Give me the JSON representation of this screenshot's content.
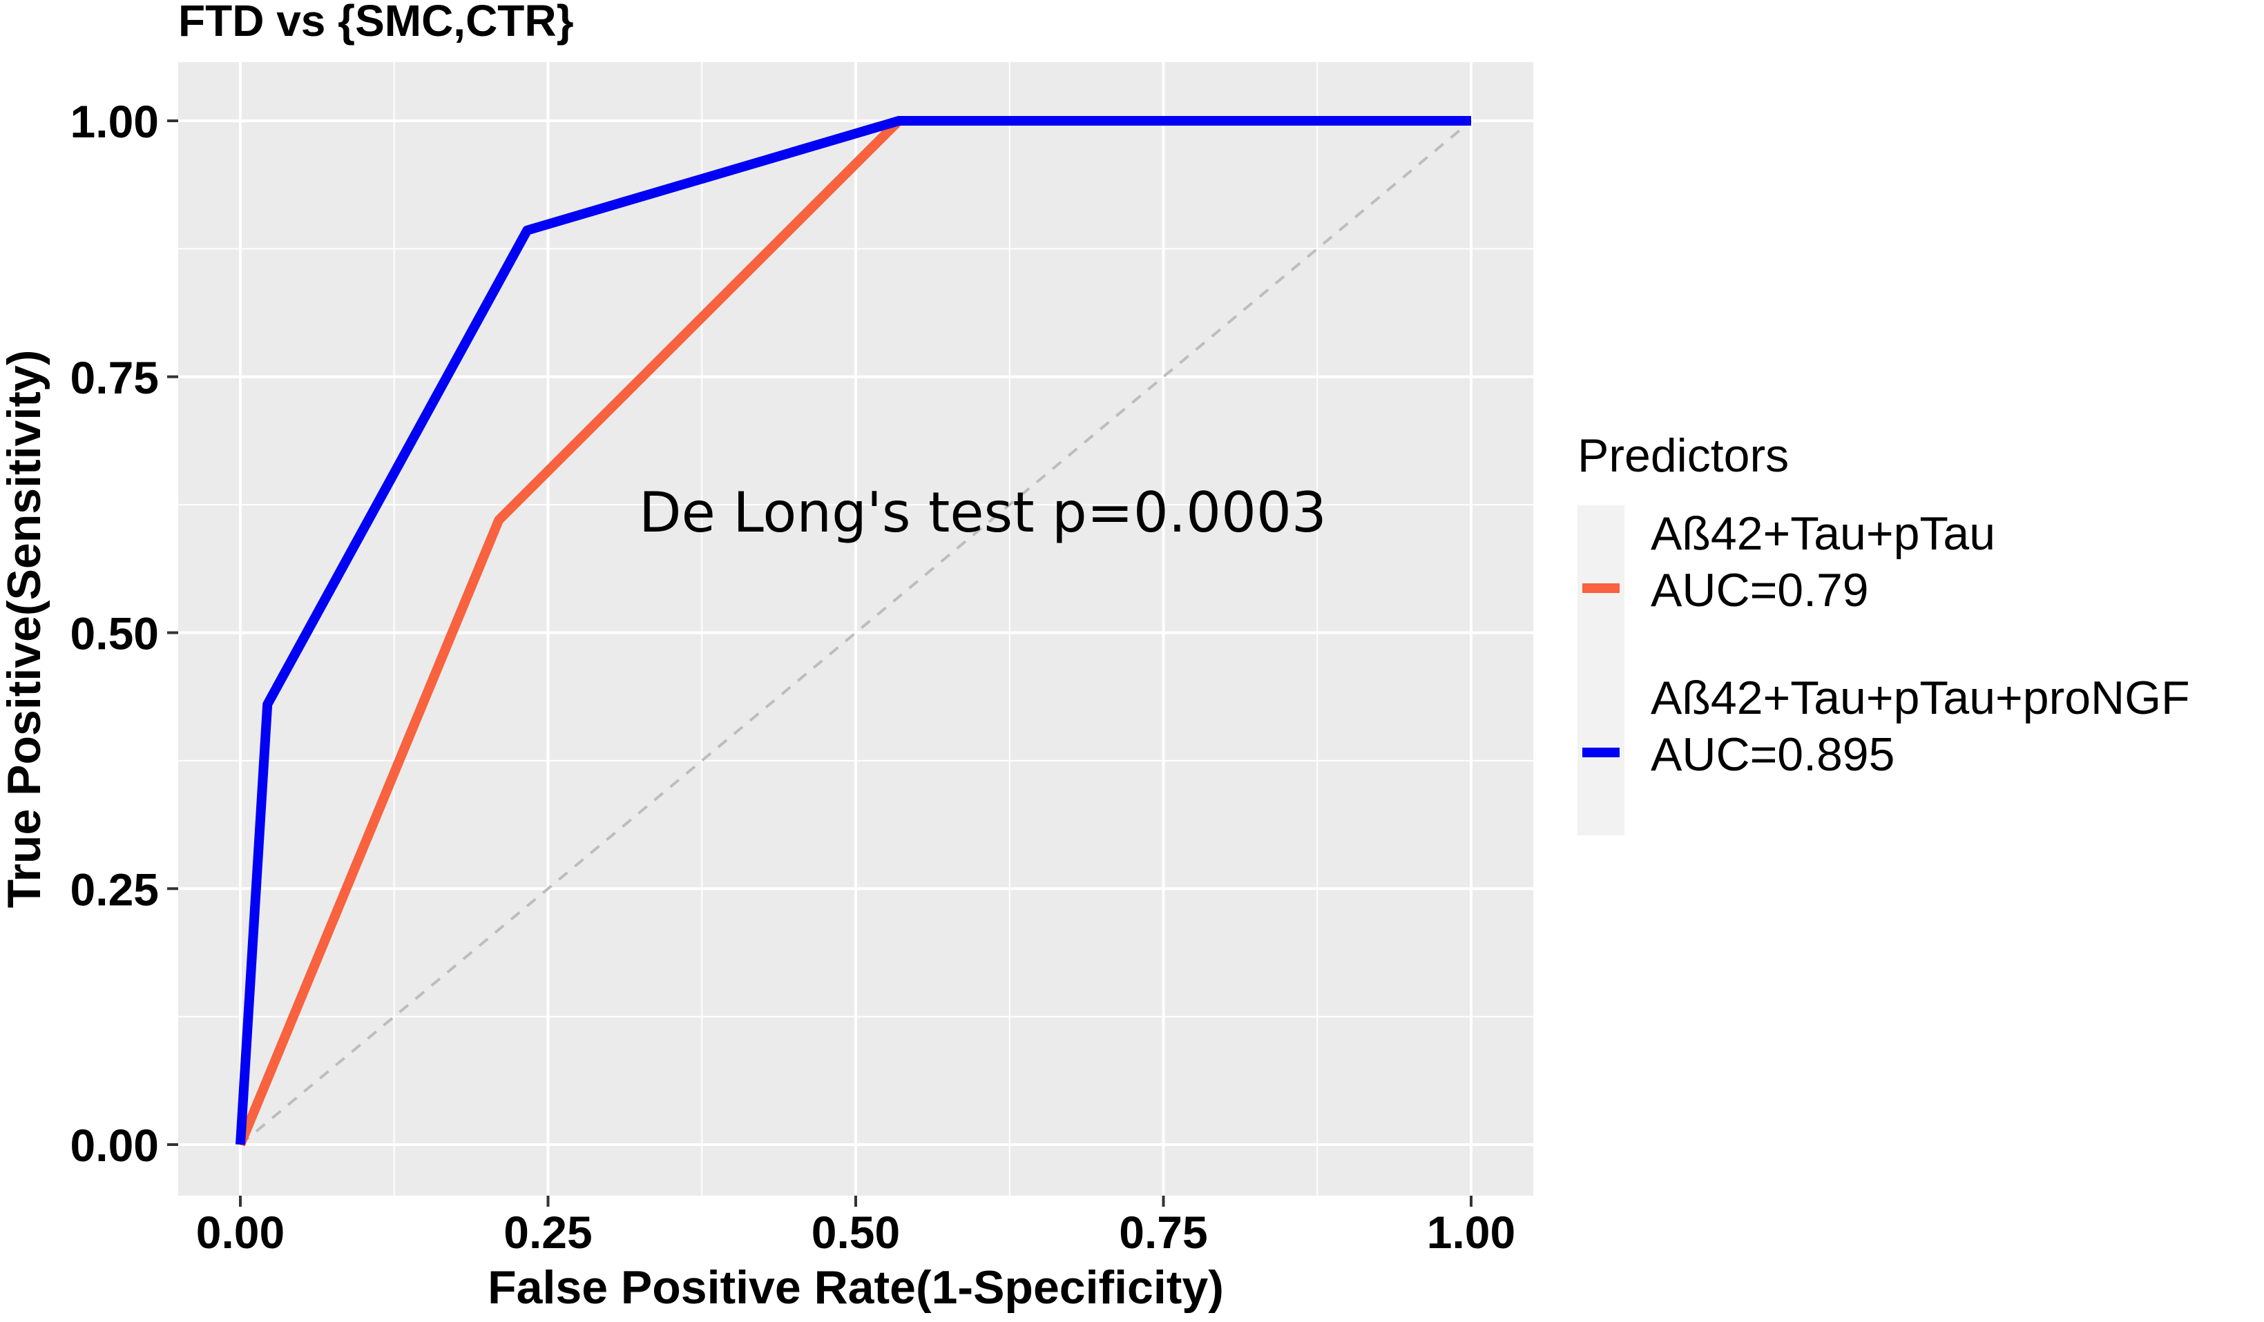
{
  "chart_data": {
    "type": "line",
    "title": "FTD vs {SMC,CTR}",
    "xlabel": "False Positive Rate(1-Specificity)",
    "ylabel": "True Positive(Sensitivity)",
    "xlim": [
      0,
      1
    ],
    "ylim": [
      0,
      1
    ],
    "x_ticks": [
      "0.00",
      "0.25",
      "0.50",
      "0.75",
      "1.00"
    ],
    "y_ticks": [
      "0.00",
      "0.25",
      "0.50",
      "0.75",
      "1.00"
    ],
    "grid": true,
    "annotation": "De Long's test p=0.0003",
    "legend": {
      "title": "Predictors",
      "placement": "right",
      "entries": [
        {
          "line1": "Aß42+Tau+pTau",
          "line2": "AUC=0.79",
          "color": "#F8623F"
        },
        {
          "line1": "Aß42+Tau+pTau+proNGF",
          "line2": "AUC=0.895",
          "color": "#0000F5"
        }
      ]
    },
    "series": [
      {
        "color": "#F8623F",
        "points": [
          [
            0.0,
            0.0
          ],
          [
            0.21,
            0.61
          ],
          [
            0.535,
            1.0
          ],
          [
            1.0,
            1.0
          ]
        ]
      },
      {
        "color": "#0000F5",
        "points": [
          [
            0.0,
            0.0
          ],
          [
            0.022,
            0.43
          ],
          [
            0.233,
            0.893
          ],
          [
            0.535,
            1.0
          ],
          [
            1.0,
            1.0
          ]
        ]
      }
    ],
    "reference_line": {
      "points": [
        [
          0,
          0
        ],
        [
          1,
          1
        ]
      ],
      "color": "#BDBDBD"
    }
  }
}
